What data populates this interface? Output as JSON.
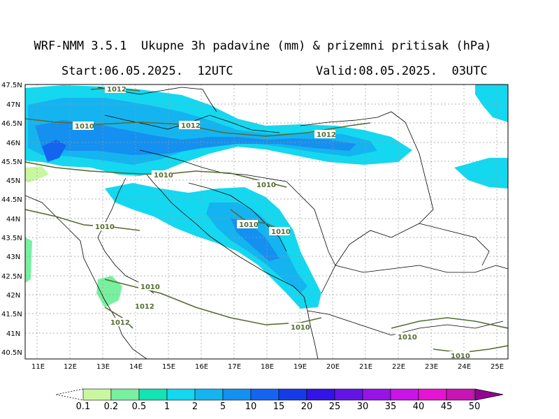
{
  "header": {
    "title": "WRF-NMM 3.5.1  Ukupne 3h padavine (mm) & prizemni pritisak (hPa)",
    "start": "Start:06.05.2025.  12UTC",
    "valid": "Valid:08.05.2025.  03UTC"
  },
  "axes": {
    "lat_labels": [
      "47.5N",
      "47N",
      "46.5N",
      "46N",
      "45.5N",
      "45N",
      "44.5N",
      "44N",
      "43.5N",
      "43N",
      "42.5N",
      "42N",
      "41.5N",
      "41N",
      "40.5N"
    ],
    "lon_labels": [
      "11E",
      "12E",
      "13E",
      "14E",
      "15E",
      "16E",
      "17E",
      "18E",
      "19E",
      "20E",
      "21E",
      "22E",
      "23E",
      "24E",
      "25E"
    ]
  },
  "isobars": {
    "labels": [
      "1012",
      "1010",
      "1012",
      "1012",
      "1010",
      "1010",
      "1010",
      "1010",
      "1010",
      "1010",
      "1012",
      "1012",
      "1010",
      "1010",
      "1010"
    ]
  },
  "colorbar": {
    "labels": [
      "0.1",
      "0.2",
      "0.5",
      "1",
      "2",
      "5",
      "10",
      "15",
      "20",
      "25",
      "30",
      "35",
      "40",
      "45",
      "50"
    ],
    "colors": [
      "#c8f7a0",
      "#78f0a0",
      "#14e3b4",
      "#14d8f0",
      "#14b4f0",
      "#1490f0",
      "#1464f0",
      "#143ce6",
      "#3214e6",
      "#6414e6",
      "#9614e6",
      "#c814e6",
      "#e614d2",
      "#c814b4",
      "#960096"
    ]
  }
}
